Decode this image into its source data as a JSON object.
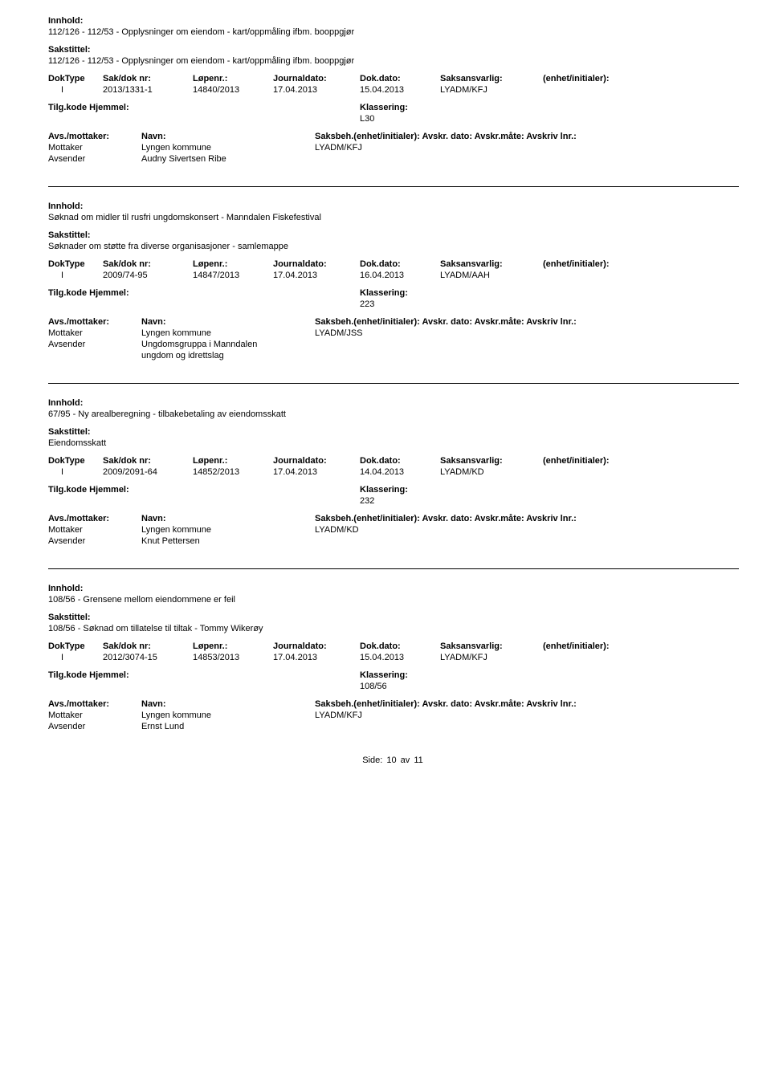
{
  "labels": {
    "innhold": "Innhold:",
    "sakstittel": "Sakstittel:",
    "doktype": "DokType",
    "saknr": "Sak/dok nr:",
    "lopenr": "Løpenr.:",
    "journaldato": "Journaldato:",
    "dokdato": "Dok.dato:",
    "saksansvarlig": "Saksansvarlig:",
    "enhet": "(enhet/initialer):",
    "tilgkode": "Tilg.kode",
    "hjemmel": "Hjemmel:",
    "klassering": "Klassering:",
    "avs_mottaker": "Avs./mottaker:",
    "navn": "Navn:",
    "saksbeh": "Saksbeh.(enhet/initialer): Avskr. dato: Avskr.måte: Avskriv lnr.:",
    "mottaker": "Mottaker",
    "avsender": "Avsender",
    "side": "Side:",
    "av": "av"
  },
  "footer": {
    "page": "10",
    "total": "11"
  },
  "records": [
    {
      "content": "112/126 - 112/53 - Opplysninger om eiendom - kart/oppmåling ifbm. booppgjør",
      "case_title": "112/126 - 112/53 - Opplysninger om eiendom - kart/oppmåling ifbm. booppgjør",
      "doktype": "I",
      "saknr": "2013/1331-1",
      "lopenr": "14840/2013",
      "journaldato": "17.04.2013",
      "dokdato": "15.04.2013",
      "saksansvarlig": "LYADM/KFJ",
      "klassering": "L30",
      "mottaker_name": "Lyngen kommune",
      "mottaker_saksbeh": "LYADM/KFJ",
      "avsender_name": "Audny Sivertsen Ribe",
      "avsender_extra": ""
    },
    {
      "content": "Søknad om midler til rusfri ungdomskonsert - Manndalen Fiskefestival",
      "case_title": "Søknader om støtte fra diverse organisasjoner - samlemappe",
      "doktype": "I",
      "saknr": "2009/74-95",
      "lopenr": "14847/2013",
      "journaldato": "17.04.2013",
      "dokdato": "16.04.2013",
      "saksansvarlig": "LYADM/AAH",
      "klassering": "223",
      "mottaker_name": "Lyngen kommune",
      "mottaker_saksbeh": "LYADM/JSS",
      "avsender_name": "Ungdomsgruppa i Manndalen",
      "avsender_extra": "ungdom og idrettslag"
    },
    {
      "content": "67/95 - Ny arealberegning - tilbakebetaling av eiendomsskatt",
      "case_title": "Eiendomsskatt",
      "doktype": "I",
      "saknr": "2009/2091-64",
      "lopenr": "14852/2013",
      "journaldato": "17.04.2013",
      "dokdato": "14.04.2013",
      "saksansvarlig": "LYADM/KD",
      "klassering": "232",
      "mottaker_name": "Lyngen kommune",
      "mottaker_saksbeh": "LYADM/KD",
      "avsender_name": "Knut Pettersen",
      "avsender_extra": ""
    },
    {
      "content": "108/56 - Grensene mellom eiendommene er feil",
      "case_title": "108/56 - Søknad om tillatelse til tiltak - Tommy Wikerøy",
      "doktype": "I",
      "saknr": "2012/3074-15",
      "lopenr": "14853/2013",
      "journaldato": "17.04.2013",
      "dokdato": "15.04.2013",
      "saksansvarlig": "LYADM/KFJ",
      "klassering": "108/56",
      "mottaker_name": "Lyngen kommune",
      "mottaker_saksbeh": "LYADM/KFJ",
      "avsender_name": "Ernst Lund",
      "avsender_extra": ""
    }
  ]
}
